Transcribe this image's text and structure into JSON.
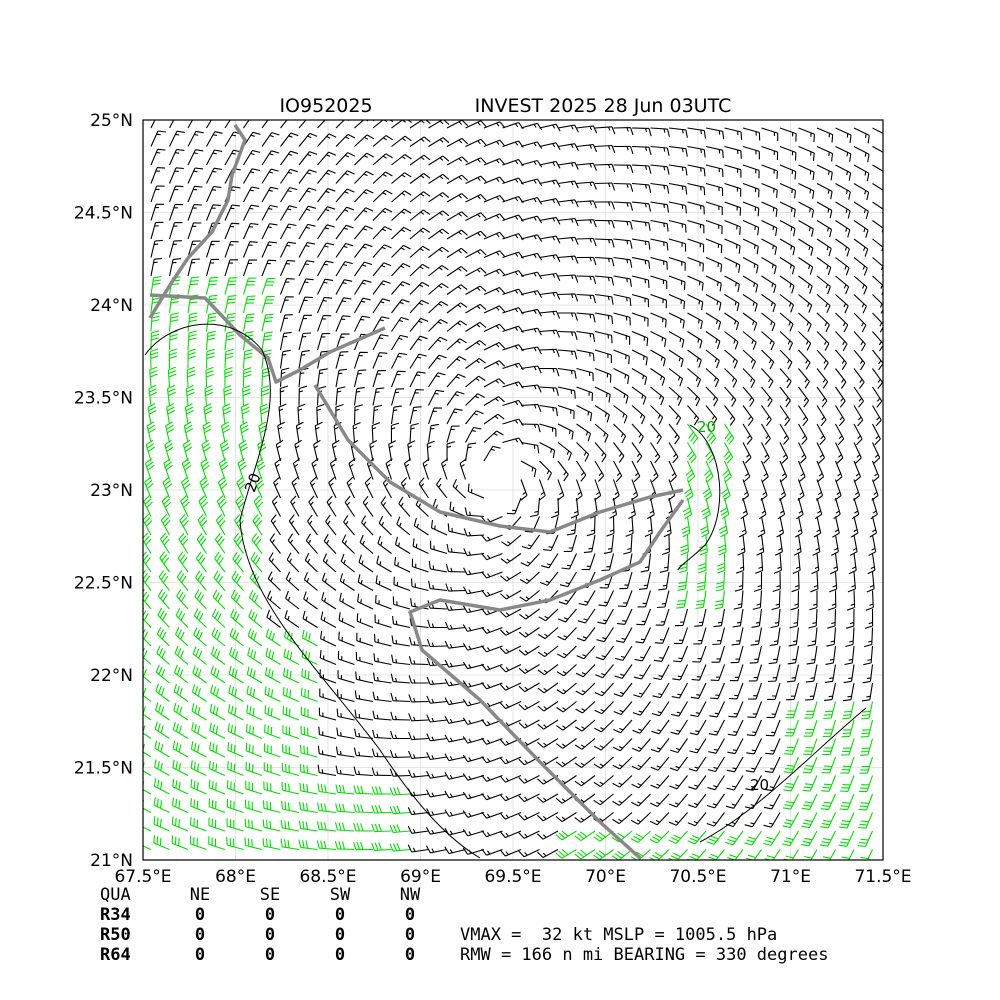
{
  "header": {
    "id": "IO952025",
    "title": "INVEST 2025 28 Jun 03UTC"
  },
  "map": {
    "lon_labels": [
      "67.5°E",
      "68°E",
      "68.5°E",
      "69°E",
      "69.5°E",
      "70°E",
      "70.5°E",
      "71°E",
      "71.5°E"
    ],
    "lat_labels": [
      "21°N",
      "21.5°N",
      "22°N",
      "22.5°N",
      "23°N",
      "23.5°N",
      "24°N",
      "24.5°N",
      "25°N"
    ],
    "contour_labels": [
      "20",
      "20",
      "20"
    ]
  },
  "table": {
    "header": [
      "QUA",
      "NE",
      "SE",
      "SW",
      "NW"
    ],
    "rows": [
      [
        "R34",
        0,
        0,
        0,
        0
      ],
      [
        "R50",
        0,
        0,
        0,
        0
      ],
      [
        "R64",
        0,
        0,
        0,
        0
      ]
    ]
  },
  "stats": [
    "VMAX =  32 kt MSLP = 1005.5 hPa",
    "RMW = 166 n mi BEARING = 330 degrees"
  ]
}
